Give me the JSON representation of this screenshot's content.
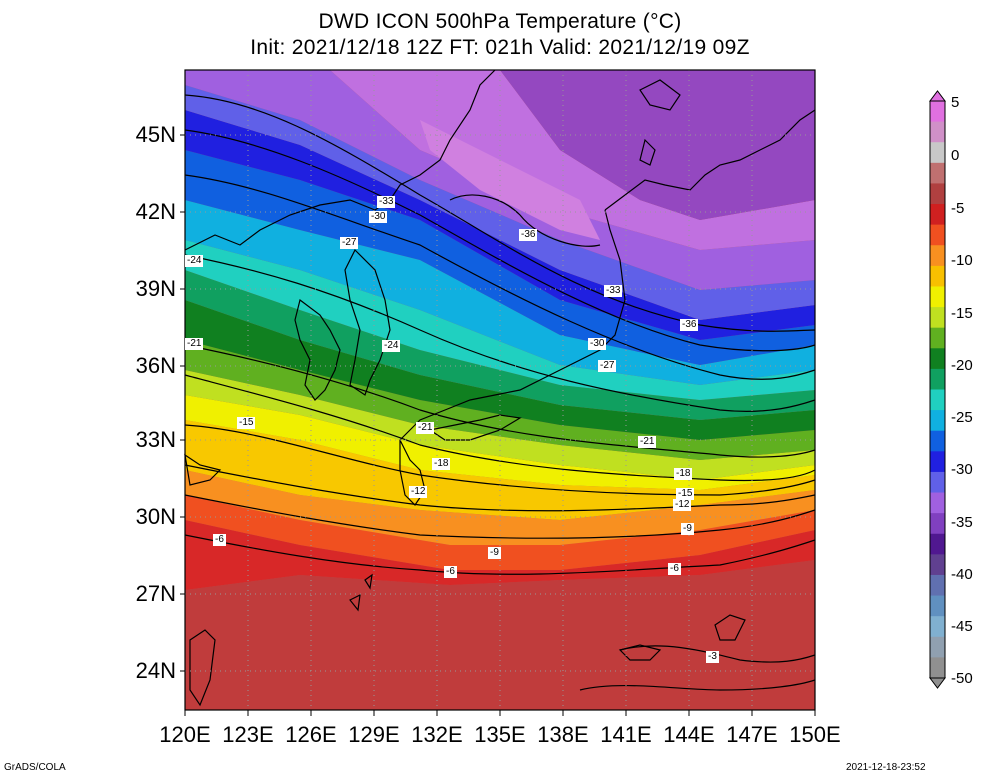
{
  "title": {
    "line1": "DWD ICON 500hPa Temperature (°C)",
    "line2": "Init: 2021/12/18 12Z  FT: 021h  Valid: 2021/12/19 09Z"
  },
  "axes": {
    "lat_labels": [
      "45N",
      "42N",
      "39N",
      "36N",
      "33N",
      "30N",
      "27N",
      "24N"
    ],
    "lon_labels": [
      "120E",
      "123E",
      "126E",
      "129E",
      "132E",
      "135E",
      "138E",
      "141E",
      "144E",
      "147E",
      "150E"
    ]
  },
  "colorbar": {
    "labels": [
      "5",
      "0",
      "-5",
      "-10",
      "-15",
      "-20",
      "-25",
      "-30",
      "-35",
      "-40",
      "-45",
      "-50"
    ],
    "colors": [
      "#e070e0",
      "#d090c8",
      "#c8c8c8",
      "#c07070",
      "#b04040",
      "#d02020",
      "#f05020",
      "#f89020",
      "#f8c000",
      "#f0f000",
      "#c0e020",
      "#60b020",
      "#108020",
      "#10a060",
      "#20d0c0",
      "#10b0e0",
      "#1060e0",
      "#2020e0",
      "#6060e8",
      "#a060e0",
      "#8040c0",
      "#501890",
      "#604090",
      "#6070b0",
      "#6090c0",
      "#80b0d0",
      "#90a0b0",
      "#909090"
    ]
  },
  "contours": [
    {
      "text": "-33"
    },
    {
      "text": "-30"
    },
    {
      "text": "-27"
    },
    {
      "text": "-36"
    },
    {
      "text": "-24"
    },
    {
      "text": "-33"
    },
    {
      "text": "-36"
    },
    {
      "text": "-21"
    },
    {
      "text": "-30"
    },
    {
      "text": "-27"
    },
    {
      "text": "-24"
    },
    {
      "text": "-15"
    },
    {
      "text": "-21"
    },
    {
      "text": "-18"
    },
    {
      "text": "-21"
    },
    {
      "text": "-12"
    },
    {
      "text": "-18"
    },
    {
      "text": "-15"
    },
    {
      "text": "-12"
    },
    {
      "text": "-9"
    },
    {
      "text": "-6"
    },
    {
      "text": "-9"
    },
    {
      "text": "-6"
    },
    {
      "text": "-6"
    },
    {
      "text": "-3"
    }
  ],
  "footer": {
    "left": "GrADS/COLA",
    "right": "2021-12-18-23:52"
  }
}
